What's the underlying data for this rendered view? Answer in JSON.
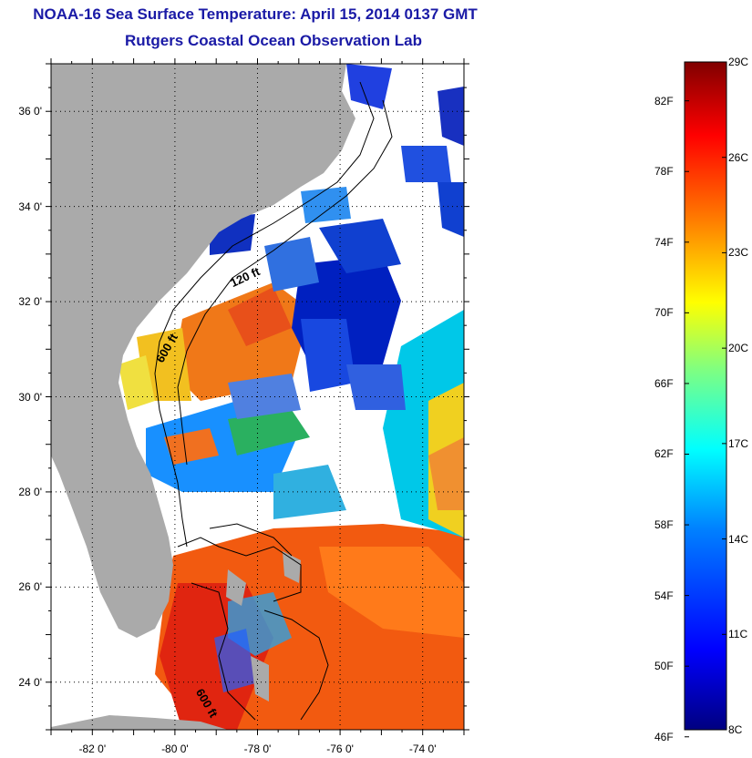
{
  "title_line1": "NOAA-16 Sea Surface Temperature:  April 15, 2014 0137 GMT",
  "title_line2": "Rutgers Coastal Ocean Observation Lab",
  "colors": {
    "title": "#1a1aa6",
    "land": "#aaaaaa",
    "water_no_data": "#ffffff",
    "colormap": [
      "#000080",
      "#0000ff",
      "#0080ff",
      "#00ffff",
      "#80ff80",
      "#ffff00",
      "#ff8000",
      "#ff0000",
      "#800000"
    ]
  },
  "map": {
    "lat_range": [
      23,
      37
    ],
    "lon_range": [
      -83,
      -73
    ],
    "lat_ticks": [
      {
        "value": 24,
        "label": "24 0'"
      },
      {
        "value": 26,
        "label": "26 0'"
      },
      {
        "value": 28,
        "label": "28 0'"
      },
      {
        "value": 30,
        "label": "30 0'"
      },
      {
        "value": 32,
        "label": "32 0'"
      },
      {
        "value": 34,
        "label": "34 0'"
      },
      {
        "value": 36,
        "label": "36 0'"
      }
    ],
    "lon_ticks": [
      {
        "value": -82,
        "label": "-82 0'"
      },
      {
        "value": -80,
        "label": "-80 0'"
      },
      {
        "value": -78,
        "label": "-78 0'"
      },
      {
        "value": -76,
        "label": "-76 0'"
      },
      {
        "value": -74,
        "label": "-74 0'"
      }
    ],
    "grid": "dotted",
    "contour_labels": [
      {
        "text": "120 ft",
        "lat": 32.3,
        "lon": -78.6
      },
      {
        "text": "600 ft",
        "lat": 30.7,
        "lon": -80.3
      },
      {
        "text": "600 ft",
        "lat": 23.8,
        "lon": -79.5
      }
    ]
  },
  "colorbar": {
    "min_c": 8,
    "max_c": 29,
    "fahrenheit_labels": [
      "82F",
      "78F",
      "74F",
      "70F",
      "66F",
      "62F",
      "58F",
      "54F",
      "50F",
      "46F"
    ],
    "celsius_labels": [
      "29C",
      "26C",
      "23C",
      "20C",
      "17C",
      "14C",
      "11C",
      "8C"
    ]
  }
}
